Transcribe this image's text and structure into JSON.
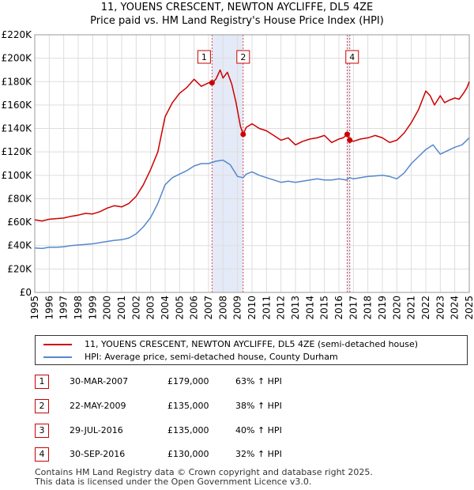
{
  "title": "11, YOUENS CRESCENT, NEWTON AYCLIFFE, DL5 4ZE",
  "subtitle": "Price paid vs. HM Land Registry's House Price Index (HPI)",
  "colors": {
    "property": "#cc0000",
    "hpi": "#5588cc",
    "grid": "#dddddd",
    "shade": "#dde5f5"
  },
  "legend": [
    {
      "label": "11, YOUENS CRESCENT, NEWTON AYCLIFFE, DL5 4ZE (semi-detached house)",
      "color": "#cc0000"
    },
    {
      "label": "HPI: Average price, semi-detached house, County Durham",
      "color": "#5588cc"
    }
  ],
  "transactions": [
    {
      "num": "1",
      "date": "30-MAR-2007",
      "price": "£179,000",
      "hpi": "63% ↑ HPI"
    },
    {
      "num": "2",
      "date": "22-MAY-2009",
      "price": "£135,000",
      "hpi": "38% ↑ HPI"
    },
    {
      "num": "3",
      "date": "29-JUL-2016",
      "price": "£135,000",
      "hpi": "40% ↑ HPI"
    },
    {
      "num": "4",
      "date": "30-SEP-2016",
      "price": "£130,000",
      "hpi": "32% ↑ HPI"
    }
  ],
  "footer": {
    "line1": "Contains HM Land Registry data © Crown copyright and database right 2025.",
    "line2": "This data is licensed under the Open Government Licence v3.0."
  },
  "chart_data": {
    "type": "line",
    "title": "11, YOUENS CRESCENT, NEWTON AYCLIFFE, DL5 4ZE",
    "subtitle": "Price paid vs. HM Land Registry's House Price Index (HPI)",
    "xlabel": "",
    "ylabel": "",
    "xlim": [
      1995,
      2025
    ],
    "ylim": [
      0,
      220000
    ],
    "grid": true,
    "x_ticks": [
      1995,
      1996,
      1997,
      1998,
      1999,
      2000,
      2001,
      2002,
      2003,
      2004,
      2005,
      2006,
      2007,
      2008,
      2009,
      2010,
      2011,
      2012,
      2013,
      2014,
      2015,
      2016,
      2017,
      2018,
      2019,
      2020,
      2021,
      2022,
      2023,
      2024,
      2025
    ],
    "x_tick_labels": [
      "1995",
      "1996",
      "1997",
      "1998",
      "1999",
      "2000",
      "2001",
      "2002",
      "2003",
      "2004",
      "2005",
      "2006",
      "2007",
      "2008",
      "2009",
      "2010",
      "2011",
      "2012",
      "2013",
      "2014",
      "2015",
      "2016",
      "2017",
      "2018",
      "2019",
      "2020",
      "2021",
      "2022",
      "2023",
      "2024",
      "2025"
    ],
    "y_ticks": [
      0,
      20000,
      40000,
      60000,
      80000,
      100000,
      120000,
      140000,
      160000,
      180000,
      200000,
      220000
    ],
    "y_tick_labels": [
      "£0",
      "£20K",
      "£40K",
      "£60K",
      "£80K",
      "£100K",
      "£120K",
      "£140K",
      "£160K",
      "£180K",
      "£200K",
      "£220K"
    ],
    "shaded_ranges": [
      [
        2007.24,
        2009.39
      ],
      [
        2016.57,
        2016.75
      ]
    ],
    "sale_markers": [
      {
        "label": "1",
        "x": 2007.24,
        "y": 179000
      },
      {
        "label": "2",
        "x": 2009.39,
        "y": 135000
      },
      {
        "label": "3",
        "x": 2016.57,
        "y": 135000
      },
      {
        "label": "4",
        "x": 2016.75,
        "y": 130000
      }
    ],
    "series": [
      {
        "name": "11, YOUENS CRESCENT, NEWTON AYCLIFFE, DL5 4ZE (semi-detached house)",
        "color": "#cc0000",
        "x": [
          1995,
          1995.5,
          1996,
          1996.5,
          1997,
          1997.5,
          1998,
          1998.5,
          1999,
          1999.5,
          2000,
          2000.5,
          2001,
          2001.5,
          2002,
          2002.5,
          2003,
          2003.5,
          2004,
          2004.5,
          2005,
          2005.5,
          2006,
          2006.5,
          2007,
          2007.24,
          2007.5,
          2007.8,
          2008,
          2008.3,
          2008.6,
          2008.9,
          2009.2,
          2009.39,
          2009.6,
          2010,
          2010.5,
          2011,
          2011.5,
          2012,
          2012.5,
          2013,
          2013.5,
          2014,
          2014.5,
          2015,
          2015.5,
          2016,
          2016.3,
          2016.57,
          2016.75,
          2017,
          2017.5,
          2018,
          2018.5,
          2019,
          2019.5,
          2020,
          2020.5,
          2021,
          2021.5,
          2022,
          2022.3,
          2022.6,
          2023,
          2023.3,
          2023.6,
          2024,
          2024.3,
          2024.6,
          2024.85,
          2025
        ],
        "y": [
          62000,
          61000,
          62500,
          63000,
          63500,
          65000,
          66000,
          67500,
          67000,
          69000,
          72000,
          74000,
          73000,
          76000,
          82000,
          92000,
          105000,
          120000,
          150000,
          162000,
          170000,
          175000,
          182000,
          176000,
          179000,
          179000,
          182000,
          190000,
          183000,
          188000,
          178000,
          162000,
          142000,
          135000,
          141000,
          144000,
          140000,
          138000,
          134000,
          130000,
          132000,
          126000,
          129000,
          131000,
          132000,
          134000,
          128000,
          131000,
          132000,
          135000,
          130000,
          129000,
          131000,
          132000,
          134000,
          132000,
          128000,
          130000,
          136000,
          145000,
          156000,
          172000,
          168000,
          160000,
          168000,
          162000,
          164000,
          166000,
          165000,
          170000,
          175000,
          180000
        ]
      },
      {
        "name": "HPI: Average price, semi-detached house, County Durham",
        "color": "#5588cc",
        "x": [
          1995,
          1995.5,
          1996,
          1996.5,
          1997,
          1997.5,
          1998,
          1998.5,
          1999,
          1999.5,
          2000,
          2000.5,
          2001,
          2001.5,
          2002,
          2002.5,
          2003,
          2003.5,
          2004,
          2004.5,
          2005,
          2005.5,
          2006,
          2006.5,
          2007,
          2007.5,
          2008,
          2008.5,
          2009,
          2009.39,
          2009.6,
          2010,
          2010.5,
          2011,
          2011.5,
          2012,
          2012.5,
          2013,
          2013.5,
          2014,
          2014.5,
          2015,
          2015.5,
          2016,
          2016.5,
          2016.75,
          2017,
          2017.5,
          2018,
          2018.5,
          2019,
          2019.5,
          2020,
          2020.5,
          2021,
          2021.5,
          2022,
          2022.5,
          2023,
          2023.5,
          2024,
          2024.5,
          2025
        ],
        "y": [
          38000,
          37500,
          38500,
          38500,
          39000,
          40000,
          40500,
          41000,
          41500,
          42500,
          43500,
          44500,
          45000,
          46500,
          50000,
          56000,
          64000,
          76000,
          92000,
          98000,
          101000,
          104000,
          108000,
          110000,
          110000,
          112000,
          113000,
          109000,
          99000,
          98000,
          101000,
          103000,
          100000,
          98000,
          96000,
          94000,
          95000,
          94000,
          95000,
          96000,
          97000,
          96000,
          96000,
          97000,
          96000,
          98000,
          97000,
          98000,
          99000,
          99500,
          100000,
          99000,
          97000,
          102000,
          110000,
          116000,
          122000,
          126000,
          118000,
          121000,
          124000,
          126000,
          132000
        ]
      }
    ]
  }
}
